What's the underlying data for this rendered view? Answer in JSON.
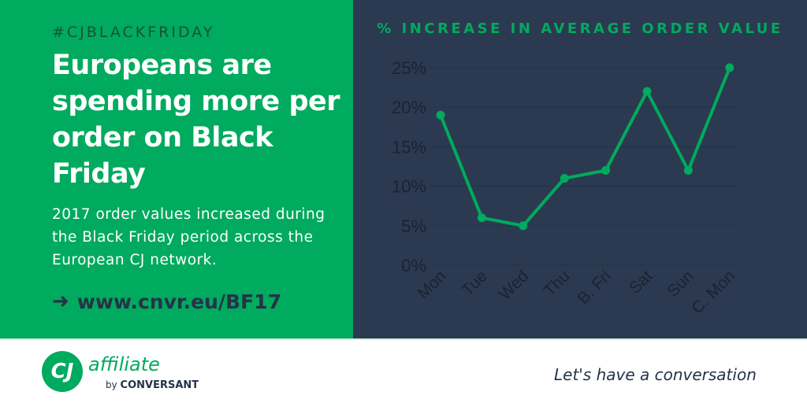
{
  "left": {
    "hashtag": "#CJBLACKFRIDAY",
    "headline": "Europeans are spending more per order on Black Friday",
    "subtext": "2017 order values increased during the Black Friday period across the European CJ network.",
    "link": "www.cnvr.eu/BF17",
    "link_icon": "arrow-right-icon"
  },
  "footer": {
    "logo_mark": "CJ",
    "logo_word": "affiliate",
    "logo_by": "by",
    "logo_brand": "CONVERSANT",
    "tagline": "Let's have a conversation"
  },
  "colors": {
    "green": "#00aa5e",
    "navy": "#2b3a50"
  },
  "chart_data": {
    "type": "line",
    "title": "% INCREASE IN AVERAGE ORDER VALUE",
    "categories": [
      "Mon",
      "Tue",
      "Wed",
      "Thu",
      "B. Fri",
      "Sat",
      "Sun",
      "C. Mon"
    ],
    "series": [
      {
        "name": "% increase",
        "values": [
          19,
          6,
          5,
          11,
          12,
          22,
          12,
          25
        ]
      }
    ],
    "yticks": [
      "0%",
      "5%",
      "10%",
      "15%",
      "20%",
      "25%"
    ],
    "ylim": [
      0,
      25
    ],
    "grid": true,
    "legend": "none"
  }
}
